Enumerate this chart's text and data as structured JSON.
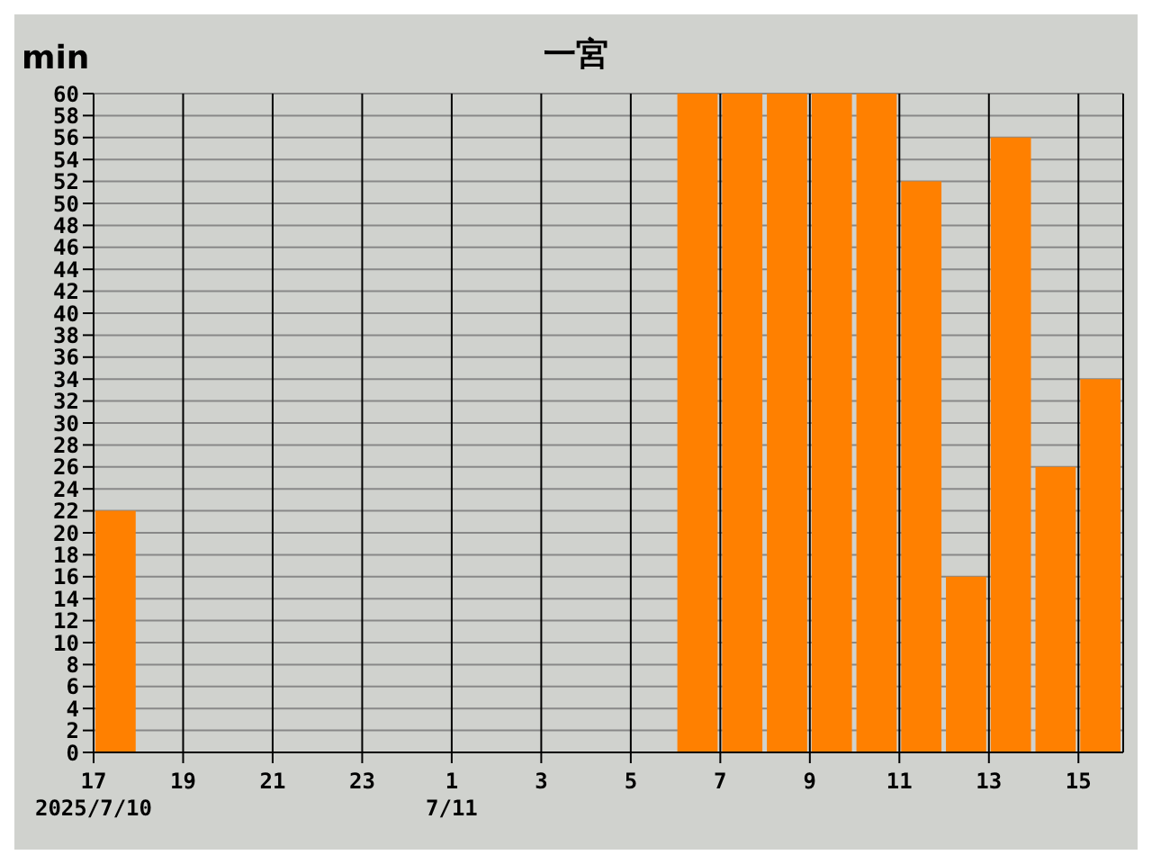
{
  "chart_data": {
    "type": "bar",
    "title": "一宮",
    "ylabel": "min",
    "x": [
      "2025-07-10T17:30",
      "2025-07-10T18:30",
      "2025-07-10T19:30",
      "2025-07-10T20:30",
      "2025-07-10T21:30",
      "2025-07-10T22:30",
      "2025-07-10T23:30",
      "2025-07-11T00:30",
      "2025-07-11T01:30",
      "2025-07-11T02:30",
      "2025-07-11T03:30",
      "2025-07-11T04:30",
      "2025-07-11T05:30",
      "2025-07-11T06:30",
      "2025-07-11T07:30",
      "2025-07-11T08:30",
      "2025-07-11T09:30",
      "2025-07-11T10:30",
      "2025-07-11T11:30",
      "2025-07-11T12:30",
      "2025-07-11T13:30",
      "2025-07-11T14:30",
      "2025-07-11T15:30"
    ],
    "values": [
      22,
      0,
      0,
      0,
      0,
      0,
      0,
      0,
      0,
      0,
      0,
      0,
      0,
      60,
      60,
      60,
      60,
      60,
      52,
      16,
      56,
      26,
      34
    ],
    "color": "#ff8000",
    "xlim": [
      "2025-07-10T17:00",
      "2025-07-11T16:00"
    ],
    "xticks": [
      {
        "value": "2025-07-10T17:00",
        "label": "17\n2025/7/10"
      },
      {
        "value": "2025-07-10T19:00",
        "label": "19"
      },
      {
        "value": "2025-07-10T21:00",
        "label": "21"
      },
      {
        "value": "2025-07-10T23:00",
        "label": "23"
      },
      {
        "value": "2025-07-11T01:00",
        "label": "1\n7/11"
      },
      {
        "value": "2025-07-11T03:00",
        "label": "3"
      },
      {
        "value": "2025-07-11T05:00",
        "label": "5"
      },
      {
        "value": "2025-07-11T07:00",
        "label": "7"
      },
      {
        "value": "2025-07-11T09:00",
        "label": "9"
      },
      {
        "value": "2025-07-11T11:00",
        "label": "11"
      },
      {
        "value": "2025-07-11T13:00",
        "label": "13"
      },
      {
        "value": "2025-07-11T15:00",
        "label": "15"
      }
    ],
    "ylim": [
      0,
      60
    ],
    "yticks": [
      0,
      2,
      4,
      6,
      8,
      10,
      12,
      14,
      16,
      18,
      20,
      22,
      24,
      26,
      28,
      30,
      32,
      34,
      36,
      38,
      40,
      42,
      44,
      46,
      48,
      50,
      52,
      54,
      56,
      58,
      60
    ],
    "grid": true
  }
}
